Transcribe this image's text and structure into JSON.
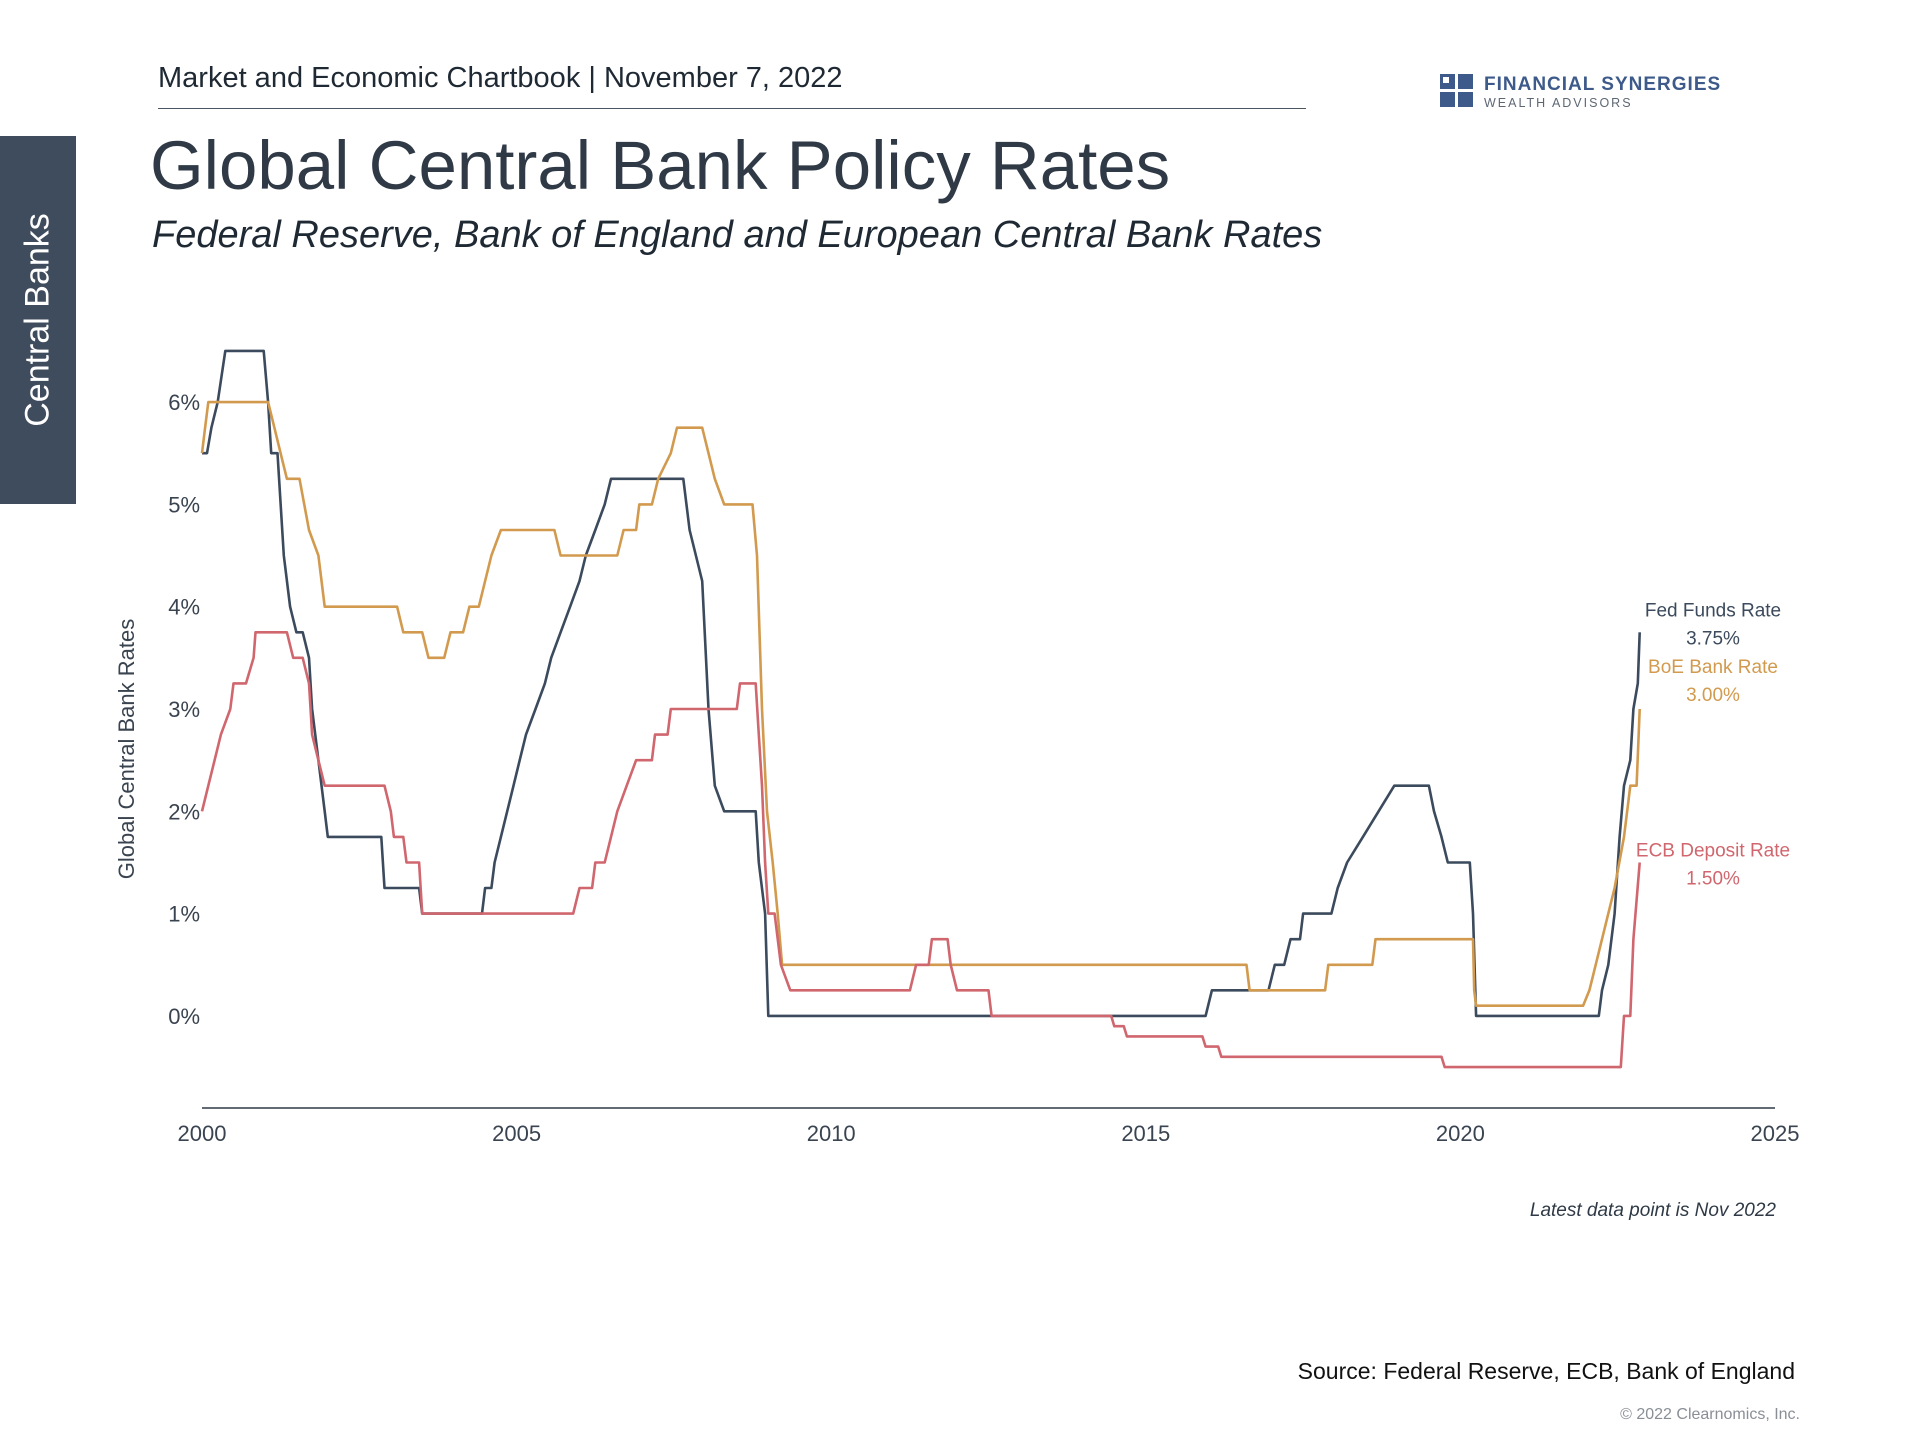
{
  "section_tab": "Central Banks",
  "header": "Market and Economic Chartbook | November 7, 2022",
  "brand": {
    "name": "FINANCIAL SYNERGIES",
    "tagline": "WEALTH ADVISORS",
    "color": "#3d5a8a"
  },
  "footer": {
    "note": "Latest data point is Nov 2022",
    "source": "Source: Federal Reserve, ECB, Bank of England",
    "copyright": "© 2022 Clearnomics, Inc."
  },
  "chart_data": {
    "type": "line",
    "title": "Global Central Bank Policy Rates",
    "subtitle": "Federal Reserve, Bank of England and European Central Bank Rates",
    "xlabel": "",
    "ylabel": "Global Central Bank Rates",
    "xlim": [
      2000,
      2025
    ],
    "ylim": [
      -0.9,
      6.9
    ],
    "x_ticks": [
      2000,
      2005,
      2010,
      2015,
      2020,
      2025
    ],
    "y_ticks": [
      {
        "value": 0,
        "label": "0%"
      },
      {
        "value": 1,
        "label": "1%"
      },
      {
        "value": 2,
        "label": "2%"
      },
      {
        "value": 3,
        "label": "3%"
      },
      {
        "value": 4,
        "label": "4%"
      },
      {
        "value": 5,
        "label": "5%"
      },
      {
        "value": 6,
        "label": "6%"
      }
    ],
    "series": [
      {
        "name": "Fed Funds Rate",
        "end_label": "3.75%",
        "color": "#3b4a5c",
        "points": [
          [
            2000.0,
            5.5
          ],
          [
            2000.08,
            5.5
          ],
          [
            2000.15,
            5.75
          ],
          [
            2000.25,
            6.0
          ],
          [
            2000.37,
            6.5
          ],
          [
            2000.98,
            6.5
          ],
          [
            2001.05,
            6.0
          ],
          [
            2001.1,
            5.5
          ],
          [
            2001.2,
            5.5
          ],
          [
            2001.3,
            4.5
          ],
          [
            2001.4,
            4.0
          ],
          [
            2001.5,
            3.75
          ],
          [
            2001.6,
            3.75
          ],
          [
            2001.7,
            3.5
          ],
          [
            2001.75,
            3.0
          ],
          [
            2001.85,
            2.5
          ],
          [
            2001.95,
            2.0
          ],
          [
            2002.0,
            1.75
          ],
          [
            2002.85,
            1.75
          ],
          [
            2002.9,
            1.25
          ],
          [
            2003.45,
            1.25
          ],
          [
            2003.5,
            1.0
          ],
          [
            2004.45,
            1.0
          ],
          [
            2004.5,
            1.25
          ],
          [
            2004.6,
            1.25
          ],
          [
            2004.65,
            1.5
          ],
          [
            2004.75,
            1.75
          ],
          [
            2004.85,
            2.0
          ],
          [
            2004.95,
            2.25
          ],
          [
            2005.05,
            2.5
          ],
          [
            2005.15,
            2.75
          ],
          [
            2005.3,
            3.0
          ],
          [
            2005.45,
            3.25
          ],
          [
            2005.55,
            3.5
          ],
          [
            2005.7,
            3.75
          ],
          [
            2005.85,
            4.0
          ],
          [
            2006.0,
            4.25
          ],
          [
            2006.1,
            4.5
          ],
          [
            2006.25,
            4.75
          ],
          [
            2006.4,
            5.0
          ],
          [
            2006.5,
            5.25
          ],
          [
            2007.65,
            5.25
          ],
          [
            2007.75,
            4.75
          ],
          [
            2007.85,
            4.5
          ],
          [
            2007.95,
            4.25
          ],
          [
            2008.05,
            3.0
          ],
          [
            2008.15,
            2.25
          ],
          [
            2008.3,
            2.0
          ],
          [
            2008.8,
            2.0
          ],
          [
            2008.85,
            1.5
          ],
          [
            2008.95,
            1.0
          ],
          [
            2009.0,
            0.0
          ],
          [
            2015.95,
            0.0
          ],
          [
            2016.05,
            0.25
          ],
          [
            2016.95,
            0.25
          ],
          [
            2017.05,
            0.5
          ],
          [
            2017.2,
            0.5
          ],
          [
            2017.3,
            0.75
          ],
          [
            2017.45,
            0.75
          ],
          [
            2017.5,
            1.0
          ],
          [
            2017.95,
            1.0
          ],
          [
            2018.05,
            1.25
          ],
          [
            2018.2,
            1.5
          ],
          [
            2018.45,
            1.75
          ],
          [
            2018.7,
            2.0
          ],
          [
            2018.95,
            2.25
          ],
          [
            2019.5,
            2.25
          ],
          [
            2019.58,
            2.0
          ],
          [
            2019.7,
            1.75
          ],
          [
            2019.8,
            1.5
          ],
          [
            2020.15,
            1.5
          ],
          [
            2020.2,
            1.0
          ],
          [
            2020.25,
            0.0
          ],
          [
            2022.2,
            0.0
          ],
          [
            2022.25,
            0.25
          ],
          [
            2022.35,
            0.5
          ],
          [
            2022.45,
            1.0
          ],
          [
            2022.53,
            1.75
          ],
          [
            2022.6,
            2.25
          ],
          [
            2022.7,
            2.5
          ],
          [
            2022.75,
            3.0
          ],
          [
            2022.82,
            3.25
          ],
          [
            2022.85,
            3.75
          ]
        ]
      },
      {
        "name": "BoE Bank Rate",
        "end_label": "3.00%",
        "color": "#d29a4e",
        "points": [
          [
            2000.0,
            5.5
          ],
          [
            2000.05,
            5.75
          ],
          [
            2000.1,
            6.0
          ],
          [
            2001.05,
            6.0
          ],
          [
            2001.15,
            5.75
          ],
          [
            2001.25,
            5.5
          ],
          [
            2001.35,
            5.25
          ],
          [
            2001.55,
            5.25
          ],
          [
            2001.7,
            4.75
          ],
          [
            2001.85,
            4.5
          ],
          [
            2001.95,
            4.0
          ],
          [
            2003.1,
            4.0
          ],
          [
            2003.2,
            3.75
          ],
          [
            2003.5,
            3.75
          ],
          [
            2003.6,
            3.5
          ],
          [
            2003.85,
            3.5
          ],
          [
            2003.95,
            3.75
          ],
          [
            2004.15,
            3.75
          ],
          [
            2004.25,
            4.0
          ],
          [
            2004.4,
            4.0
          ],
          [
            2004.5,
            4.25
          ],
          [
            2004.6,
            4.5
          ],
          [
            2004.75,
            4.75
          ],
          [
            2005.6,
            4.75
          ],
          [
            2005.7,
            4.5
          ],
          [
            2006.6,
            4.5
          ],
          [
            2006.7,
            4.75
          ],
          [
            2006.9,
            4.75
          ],
          [
            2006.95,
            5.0
          ],
          [
            2007.15,
            5.0
          ],
          [
            2007.25,
            5.25
          ],
          [
            2007.45,
            5.5
          ],
          [
            2007.55,
            5.75
          ],
          [
            2007.95,
            5.75
          ],
          [
            2008.05,
            5.5
          ],
          [
            2008.15,
            5.25
          ],
          [
            2008.3,
            5.0
          ],
          [
            2008.75,
            5.0
          ],
          [
            2008.82,
            4.5
          ],
          [
            2008.9,
            3.0
          ],
          [
            2008.98,
            2.0
          ],
          [
            2009.07,
            1.5
          ],
          [
            2009.15,
            1.0
          ],
          [
            2009.22,
            0.5
          ],
          [
            2016.6,
            0.5
          ],
          [
            2016.65,
            0.25
          ],
          [
            2017.85,
            0.25
          ],
          [
            2017.9,
            0.5
          ],
          [
            2018.6,
            0.5
          ],
          [
            2018.65,
            0.75
          ],
          [
            2020.2,
            0.75
          ],
          [
            2020.22,
            0.25
          ],
          [
            2020.25,
            0.1
          ],
          [
            2021.95,
            0.1
          ],
          [
            2022.05,
            0.25
          ],
          [
            2022.15,
            0.5
          ],
          [
            2022.25,
            0.75
          ],
          [
            2022.35,
            1.0
          ],
          [
            2022.45,
            1.25
          ],
          [
            2022.6,
            1.75
          ],
          [
            2022.7,
            2.25
          ],
          [
            2022.8,
            2.25
          ],
          [
            2022.85,
            3.0
          ]
        ]
      },
      {
        "name": "ECB Deposit Rate",
        "end_label": "1.50%",
        "color": "#d0666e",
        "points": [
          [
            2000.0,
            2.0
          ],
          [
            2000.1,
            2.25
          ],
          [
            2000.2,
            2.5
          ],
          [
            2000.3,
            2.75
          ],
          [
            2000.45,
            3.0
          ],
          [
            2000.5,
            3.25
          ],
          [
            2000.7,
            3.25
          ],
          [
            2000.82,
            3.5
          ],
          [
            2000.85,
            3.75
          ],
          [
            2001.35,
            3.75
          ],
          [
            2001.45,
            3.5
          ],
          [
            2001.6,
            3.5
          ],
          [
            2001.7,
            3.25
          ],
          [
            2001.75,
            2.75
          ],
          [
            2001.85,
            2.5
          ],
          [
            2001.95,
            2.25
          ],
          [
            2002.9,
            2.25
          ],
          [
            2003.0,
            2.0
          ],
          [
            2003.05,
            1.75
          ],
          [
            2003.2,
            1.75
          ],
          [
            2003.25,
            1.5
          ],
          [
            2003.45,
            1.5
          ],
          [
            2003.5,
            1.0
          ],
          [
            2005.9,
            1.0
          ],
          [
            2006.0,
            1.25
          ],
          [
            2006.2,
            1.25
          ],
          [
            2006.25,
            1.5
          ],
          [
            2006.4,
            1.5
          ],
          [
            2006.5,
            1.75
          ],
          [
            2006.6,
            2.0
          ],
          [
            2006.75,
            2.25
          ],
          [
            2006.9,
            2.5
          ],
          [
            2007.15,
            2.5
          ],
          [
            2007.2,
            2.75
          ],
          [
            2007.4,
            2.75
          ],
          [
            2007.45,
            3.0
          ],
          [
            2008.5,
            3.0
          ],
          [
            2008.55,
            3.25
          ],
          [
            2008.8,
            3.25
          ],
          [
            2008.85,
            2.75
          ],
          [
            2008.9,
            2.25
          ],
          [
            2008.95,
            1.5
          ],
          [
            2009.0,
            1.0
          ],
          [
            2009.1,
            1.0
          ],
          [
            2009.2,
            0.5
          ],
          [
            2009.35,
            0.25
          ],
          [
            2011.25,
            0.25
          ],
          [
            2011.35,
            0.5
          ],
          [
            2011.55,
            0.5
          ],
          [
            2011.6,
            0.75
          ],
          [
            2011.85,
            0.75
          ],
          [
            2011.9,
            0.5
          ],
          [
            2012.0,
            0.25
          ],
          [
            2012.5,
            0.25
          ],
          [
            2012.55,
            0.0
          ],
          [
            2014.45,
            0.0
          ],
          [
            2014.5,
            -0.1
          ],
          [
            2014.65,
            -0.1
          ],
          [
            2014.7,
            -0.2
          ],
          [
            2015.9,
            -0.2
          ],
          [
            2015.95,
            -0.3
          ],
          [
            2016.15,
            -0.3
          ],
          [
            2016.2,
            -0.4
          ],
          [
            2019.7,
            -0.4
          ],
          [
            2019.75,
            -0.5
          ],
          [
            2022.55,
            -0.5
          ],
          [
            2022.6,
            0.0
          ],
          [
            2022.7,
            0.0
          ],
          [
            2022.75,
            0.75
          ],
          [
            2022.85,
            1.5
          ]
        ]
      }
    ]
  }
}
